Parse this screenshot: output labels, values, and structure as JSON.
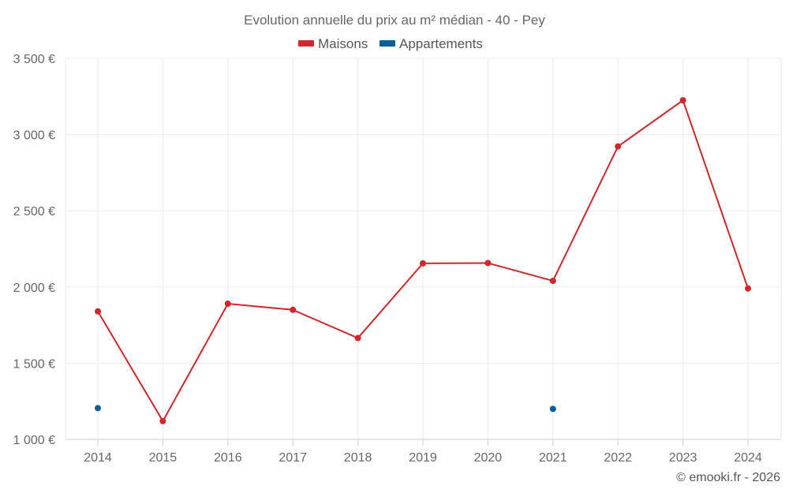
{
  "chart_data": {
    "type": "line",
    "title": "Evolution annuelle du prix au m² médian - 40 - Pey",
    "categories": [
      "2014",
      "2015",
      "2016",
      "2017",
      "2018",
      "2019",
      "2020",
      "2021",
      "2022",
      "2023",
      "2024"
    ],
    "series": [
      {
        "name": "Maisons",
        "color": "#d0262c",
        "values": [
          1840,
          1120,
          1890,
          1850,
          1665,
          2155,
          2157,
          2040,
          2922,
          3225,
          1990
        ]
      },
      {
        "name": "Appartements",
        "color": "#0c5f99",
        "values": [
          1205,
          null,
          null,
          null,
          null,
          null,
          null,
          1200,
          null,
          null,
          null
        ]
      }
    ],
    "y_ticks": [
      "1 000 €",
      "1 500 €",
      "2 000 €",
      "2 500 €",
      "3 000 €",
      "3 500 €"
    ],
    "ylim": [
      1000,
      3500
    ],
    "grid": true,
    "legend_position": "top-center"
  },
  "credit": "© emooki.fr - 2026"
}
